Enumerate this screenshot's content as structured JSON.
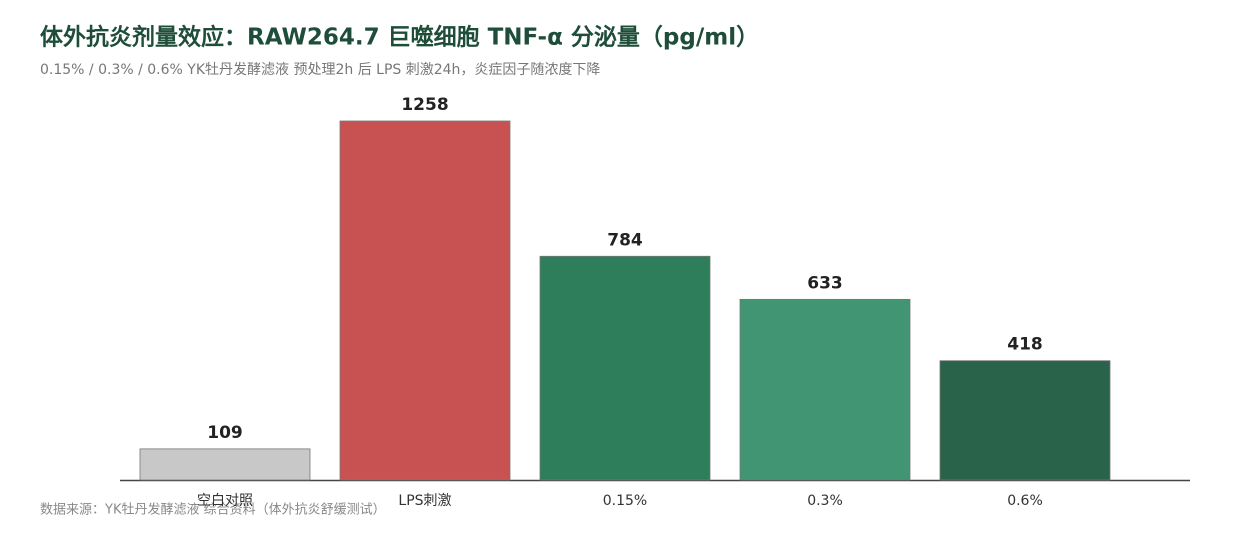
{
  "chart_data": {
    "type": "bar",
    "title": "体外抗炎剂量效应：RAW264.7 巨噬细胞 TNF-α 分泌量（pg/ml）",
    "subtitle": "0.15% / 0.3% / 0.6% YK牡丹发酵滤液 预处理2h 后 LPS 刺激24h，炎症因子随浓度下降",
    "categories": [
      "空白对照",
      "LPS刺激",
      "0.15%",
      "0.3%",
      "0.6%"
    ],
    "values": [
      109,
      1258,
      784,
      633,
      418
    ],
    "colors": [
      "#c8c8c8",
      "#c85252",
      "#2e7d5b",
      "#429572",
      "#29634a"
    ],
    "source": "数据来源：YK牡丹发酵滤液 综合资料（体外抗炎舒缓测试）"
  }
}
